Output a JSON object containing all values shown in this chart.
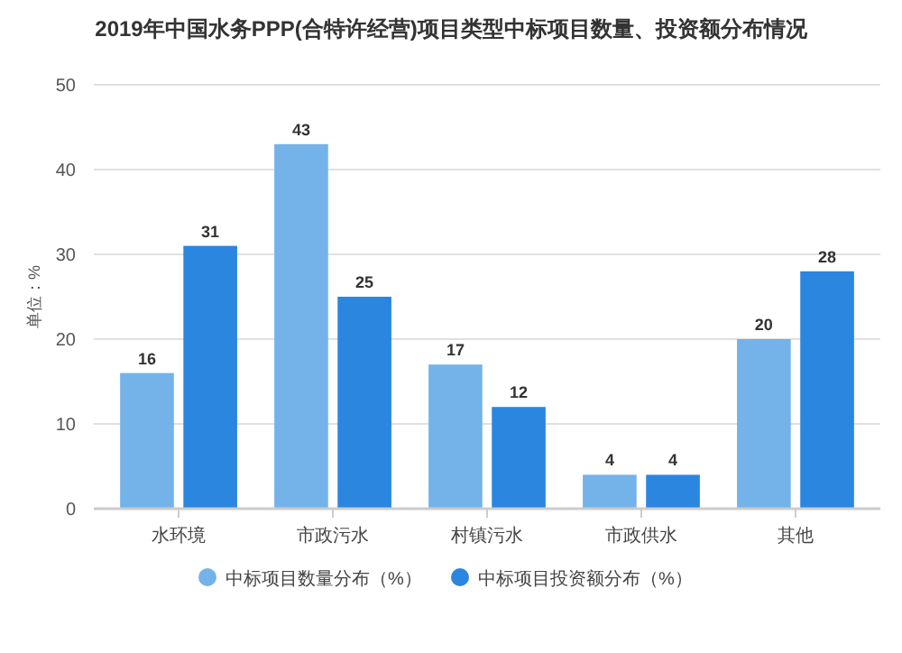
{
  "chart_data": {
    "type": "bar",
    "title": "2019年中国水务PPP(合特许经营)项目类型中标项目数量、投资额分布情况",
    "ylabel": "单位：%",
    "categories": [
      "水环境",
      "市政污水",
      "村镇污水",
      "市政供水",
      "其他"
    ],
    "series": [
      {
        "name": "中标项目数量分布（%）",
        "color": "#74b2ea",
        "values": [
          16,
          43,
          17,
          4,
          20
        ]
      },
      {
        "name": "中标项目投资额分布（%）",
        "color": "#2b86e0",
        "values": [
          31,
          25,
          12,
          4,
          28
        ]
      }
    ],
    "ylim": [
      0,
      50
    ],
    "yticks": [
      0,
      10,
      20,
      30,
      40,
      50
    ],
    "grid": "y",
    "legend": "bottom",
    "data_labels": true
  }
}
